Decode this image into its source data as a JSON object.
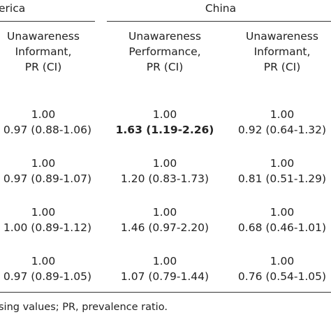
{
  "headers": {
    "america_group": "erica",
    "china_group": "China",
    "col1": [
      "Unawareness",
      "Informant,",
      "PR (CI)"
    ],
    "col2": [
      "Unawareness",
      "Performance,",
      "PR (CI)"
    ],
    "col3": [
      "Unawareness",
      "Informant,",
      "PR (CI)"
    ]
  },
  "rows": [
    {
      "c1": [
        "1.00",
        "0.97 (0.88-1.06)"
      ],
      "c2": [
        "1.00",
        "1.63 (1.19-2.26)"
      ],
      "c3": [
        "1.00",
        "0.92 (0.64-1.32)"
      ]
    },
    {
      "c1": [
        "1.00",
        "0.97 (0.89-1.07)"
      ],
      "c2": [
        "1.00",
        "1.20 (0.83-1.73)"
      ],
      "c3": [
        "1.00",
        "0.81 (0.51-1.29)"
      ]
    },
    {
      "c1": [
        "1.00",
        "1.00 (0.89-1.12)"
      ],
      "c2": [
        "1.00",
        "1.46 (0.97-2.20)"
      ],
      "c3": [
        "1.00",
        "0.68 (0.46-1.01)"
      ]
    },
    {
      "c1": [
        "1.00",
        "0.97 (0.89-1.05)"
      ],
      "c2": [
        "1.00",
        "1.07 (0.79-1.44)"
      ],
      "c3": [
        "1.00",
        "0.76 (0.54-1.05)"
      ]
    }
  ],
  "footnote": "sing values; PR, prevalence ratio."
}
